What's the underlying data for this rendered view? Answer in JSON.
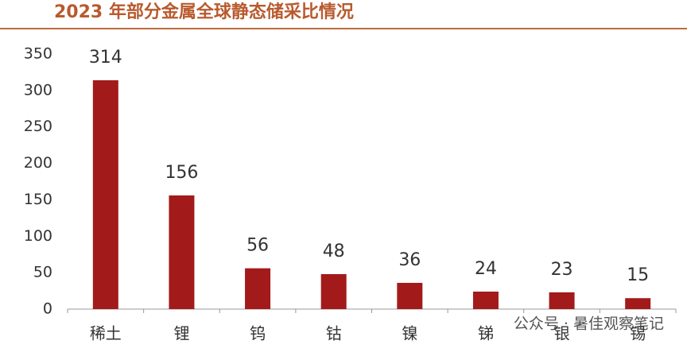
{
  "chart_data": {
    "type": "bar",
    "title": "2023 年部分金属全球静态储采比情况",
    "categories": [
      "稀土",
      "锂",
      "钨",
      "钴",
      "镍",
      "锑",
      "银",
      "锡"
    ],
    "values": [
      314,
      156,
      56,
      48,
      36,
      24,
      23,
      15
    ],
    "color": "#a31a1a",
    "ylim": [
      0,
      350
    ],
    "yticks": [
      0,
      50,
      100,
      150,
      200,
      250,
      300,
      350
    ],
    "grid": false,
    "watermark": "公众号 · 暑佳观察笔记"
  }
}
